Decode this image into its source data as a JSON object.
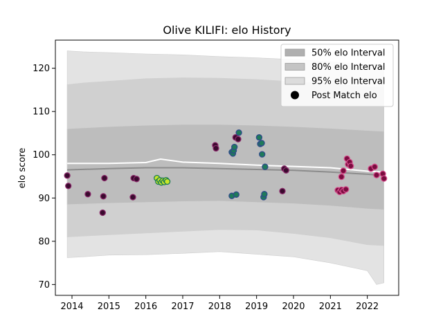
{
  "chart_data": {
    "type": "scatter",
    "title": "Olive KILIFI: elo History",
    "xlabel": "",
    "ylabel": "elo score",
    "xlim": [
      2013.55,
      2022.85
    ],
    "ylim": [
      67.5,
      126.5
    ],
    "x_ticks": [
      2014,
      2015,
      2016,
      2017,
      2018,
      2019,
      2020,
      2021,
      2022
    ],
    "y_ticks": [
      70,
      80,
      90,
      100,
      110,
      120
    ],
    "grid": false,
    "legend_position": "top-right",
    "legend": [
      {
        "label": "50% elo Interval",
        "color": "#b0b0b0",
        "kind": "patch"
      },
      {
        "label": "80% elo Interval",
        "color": "#c4c4c4",
        "kind": "patch"
      },
      {
        "label": "95% elo Interval",
        "color": "#dcdcdc",
        "kind": "patch"
      },
      {
        "label": "Post Match elo",
        "color": "#000000",
        "kind": "marker"
      }
    ],
    "bands": [
      {
        "name": "95% elo Interval",
        "color": "#e3e3e3",
        "x": [
          2013.87,
          2014.3,
          2015.0,
          2016.0,
          2017.0,
          2018.0,
          2019.0,
          2020.0,
          2021.0,
          2022.0,
          2022.25,
          2022.45
        ],
        "upper": [
          124,
          123.8,
          123.6,
          123.3,
          123.1,
          122.7,
          122.4,
          122.0,
          121.5,
          120.8,
          121.0,
          120.4
        ],
        "lower": [
          76.2,
          76.4,
          76.8,
          76.9,
          77.2,
          77.6,
          77.0,
          76.4,
          75.0,
          73.2,
          70.0,
          70.4
        ]
      },
      {
        "name": "80% elo Interval",
        "color": "#d0d0d0",
        "x": [
          2013.87,
          2014.3,
          2015.0,
          2016.0,
          2017.0,
          2018.0,
          2019.0,
          2020.0,
          2021.0,
          2022.0,
          2022.45
        ],
        "upper": [
          116.2,
          116.6,
          117.0,
          117.6,
          117.8,
          117.7,
          117.4,
          116.9,
          116.4,
          115.7,
          115.6
        ],
        "lower": [
          81.0,
          81.2,
          81.5,
          81.9,
          82.3,
          82.7,
          82.6,
          81.8,
          80.8,
          79.2,
          79.0
        ]
      },
      {
        "name": "50% elo Interval",
        "color": "#bdbdbd",
        "x": [
          2013.87,
          2014.3,
          2015.0,
          2016.0,
          2017.0,
          2018.0,
          2019.0,
          2020.0,
          2021.0,
          2022.0,
          2022.45
        ],
        "upper": [
          106.0,
          106.2,
          106.5,
          106.8,
          107.0,
          107.0,
          106.8,
          106.5,
          106.1,
          105.6,
          105.4
        ],
        "lower": [
          88.5,
          88.6,
          88.8,
          89.0,
          89.2,
          89.3,
          89.0,
          88.7,
          88.2,
          87.5,
          87.3
        ]
      }
    ],
    "lines": [
      {
        "name": "median",
        "color": "#8c8c8c",
        "x": [
          2013.87,
          2015.0,
          2016.0,
          2017.0,
          2018.0,
          2019.0,
          2020.0,
          2021.0,
          2022.0,
          2022.45
        ],
        "y": [
          96.5,
          96.8,
          97.0,
          97.0,
          96.8,
          96.6,
          96.4,
          96.0,
          95.5,
          95.2
        ]
      },
      {
        "name": "mean",
        "color": "#ffffff",
        "x": [
          2013.87,
          2015.0,
          2016.0,
          2016.4,
          2017.0,
          2018.0,
          2019.0,
          2020.0,
          2021.0,
          2022.0,
          2022.45
        ],
        "y": [
          98.0,
          98.0,
          98.2,
          99.0,
          98.3,
          98.0,
          97.6,
          97.3,
          97.0,
          96.2,
          96.0
        ]
      }
    ],
    "points": [
      {
        "x": 2013.87,
        "y": 95.2,
        "group": "purple"
      },
      {
        "x": 2013.9,
        "y": 92.8,
        "group": "purple"
      },
      {
        "x": 2014.43,
        "y": 90.9,
        "group": "purple"
      },
      {
        "x": 2014.83,
        "y": 86.6,
        "group": "purple"
      },
      {
        "x": 2014.85,
        "y": 90.4,
        "group": "purple"
      },
      {
        "x": 2014.88,
        "y": 94.6,
        "group": "purple"
      },
      {
        "x": 2015.65,
        "y": 90.2,
        "group": "purple"
      },
      {
        "x": 2015.67,
        "y": 94.6,
        "group": "purple"
      },
      {
        "x": 2015.75,
        "y": 94.4,
        "group": "purple"
      },
      {
        "x": 2016.3,
        "y": 94.6,
        "group": "yellow"
      },
      {
        "x": 2016.34,
        "y": 93.8,
        "group": "yellow"
      },
      {
        "x": 2016.38,
        "y": 94.1,
        "group": "yellow"
      },
      {
        "x": 2016.42,
        "y": 93.6,
        "group": "yellow"
      },
      {
        "x": 2016.46,
        "y": 94.0,
        "group": "yellow"
      },
      {
        "x": 2016.5,
        "y": 93.7,
        "group": "yellow"
      },
      {
        "x": 2016.55,
        "y": 94.1,
        "group": "yellow"
      },
      {
        "x": 2016.58,
        "y": 93.8,
        "group": "yellow"
      },
      {
        "x": 2017.88,
        "y": 102.2,
        "group": "purple"
      },
      {
        "x": 2017.9,
        "y": 101.5,
        "group": "purple"
      },
      {
        "x": 2018.33,
        "y": 100.6,
        "group": "green"
      },
      {
        "x": 2018.36,
        "y": 100.3,
        "group": "green"
      },
      {
        "x": 2018.38,
        "y": 101.0,
        "group": "green"
      },
      {
        "x": 2018.4,
        "y": 101.8,
        "group": "green"
      },
      {
        "x": 2018.43,
        "y": 104.0,
        "group": "purple"
      },
      {
        "x": 2018.5,
        "y": 103.6,
        "group": "purple"
      },
      {
        "x": 2018.52,
        "y": 105.1,
        "group": "green"
      },
      {
        "x": 2018.33,
        "y": 90.5,
        "group": "green"
      },
      {
        "x": 2018.45,
        "y": 90.8,
        "group": "green"
      },
      {
        "x": 2019.07,
        "y": 104.0,
        "group": "green"
      },
      {
        "x": 2019.1,
        "y": 102.5,
        "group": "green"
      },
      {
        "x": 2019.14,
        "y": 102.7,
        "group": "green"
      },
      {
        "x": 2019.15,
        "y": 100.1,
        "group": "green"
      },
      {
        "x": 2019.23,
        "y": 97.2,
        "group": "green"
      },
      {
        "x": 2019.19,
        "y": 90.2,
        "group": "green"
      },
      {
        "x": 2019.21,
        "y": 90.9,
        "group": "green"
      },
      {
        "x": 2019.7,
        "y": 91.6,
        "group": "purple"
      },
      {
        "x": 2019.75,
        "y": 96.8,
        "group": "purple"
      },
      {
        "x": 2019.8,
        "y": 96.4,
        "group": "purple"
      },
      {
        "x": 2021.2,
        "y": 91.8,
        "group": "pink"
      },
      {
        "x": 2021.25,
        "y": 91.4,
        "group": "pink"
      },
      {
        "x": 2021.3,
        "y": 91.9,
        "group": "pink"
      },
      {
        "x": 2021.35,
        "y": 91.6,
        "group": "pink"
      },
      {
        "x": 2021.42,
        "y": 92.0,
        "group": "pink"
      },
      {
        "x": 2021.3,
        "y": 94.9,
        "group": "pink"
      },
      {
        "x": 2021.35,
        "y": 96.3,
        "group": "pink"
      },
      {
        "x": 2021.45,
        "y": 99.1,
        "group": "pink"
      },
      {
        "x": 2021.48,
        "y": 97.8,
        "group": "pink"
      },
      {
        "x": 2021.52,
        "y": 98.3,
        "group": "pink"
      },
      {
        "x": 2021.55,
        "y": 97.4,
        "group": "pink"
      },
      {
        "x": 2022.1,
        "y": 96.8,
        "group": "pink"
      },
      {
        "x": 2022.2,
        "y": 97.2,
        "group": "pink"
      },
      {
        "x": 2022.25,
        "y": 95.3,
        "group": "pink"
      },
      {
        "x": 2022.42,
        "y": 95.6,
        "group": "pink"
      },
      {
        "x": 2022.45,
        "y": 94.5,
        "group": "pink"
      }
    ],
    "point_colors": {
      "purple": {
        "fill": "#3a0a2e",
        "edge": "#8a2a6a"
      },
      "yellow": {
        "fill": "#c8e62a",
        "edge": "#1a7a52"
      },
      "green": {
        "fill": "#1f7a5a",
        "edge": "#2f4a8a"
      },
      "pink": {
        "fill": "#7a0d3f",
        "edge": "#d44a8a"
      }
    }
  }
}
